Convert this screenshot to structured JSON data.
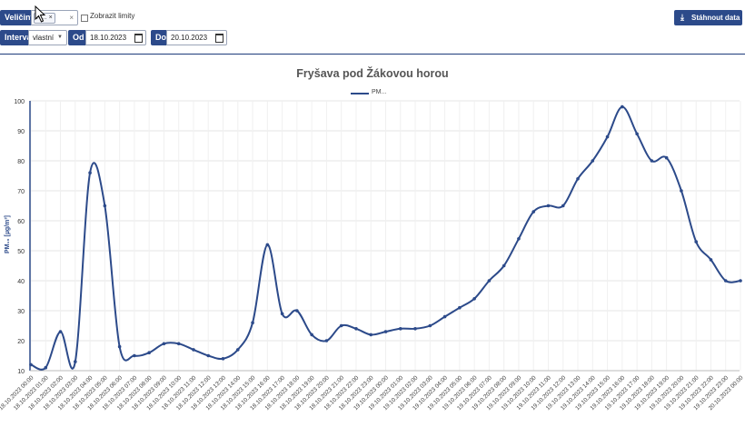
{
  "controls": {
    "quantities_label": "Veličiny",
    "quantity_chip": "P",
    "chip_remove": "×",
    "clear_all": "×",
    "show_limits_label": "Zobrazit limity",
    "interval_label": "Interval",
    "interval_value": "vlastní",
    "from_label": "Od",
    "from_value": "18.10.2023",
    "to_label": "Do",
    "to_value": "20.10.2023",
    "download_label": "Stáhnout data",
    "download_icon": "download-icon",
    "calendar_icon": "calendar-icon"
  },
  "chart_data": {
    "type": "line",
    "title": "Fryšava pod Žákovou horou",
    "ylabel": "PM₁₀ [µg/m³]",
    "legend": "PM...",
    "ylim": [
      10,
      100
    ],
    "yticks": [
      10,
      20,
      30,
      40,
      50,
      60,
      70,
      80,
      90,
      100
    ],
    "grid": true,
    "line_color": "#2c4a8a",
    "x": [
      "18.10.2023 01:00",
      "18.10.2023 02:00",
      "18.10.2023 03:00",
      "18.10.2023 04:00",
      "18.10.2023 05:00",
      "18.10.2023 06:00",
      "18.10.2023 07:00",
      "18.10.2023 08:00",
      "18.10.2023 09:00",
      "18.10.2023 10:00",
      "18.10.2023 11:00",
      "18.10.2023 12:00",
      "18.10.2023 13:00",
      "18.10.2023 14:00",
      "18.10.2023 15:00",
      "18.10.2023 16:00",
      "18.10.2023 17:00",
      "18.10.2023 18:00",
      "18.10.2023 19:00",
      "18.10.2023 20:00",
      "18.10.2023 21:00",
      "18.10.2023 22:00",
      "18.10.2023 23:00",
      "19.10.2023 00:00",
      "19.10.2023 01:00",
      "19.10.2023 02:00",
      "19.10.2023 03:00",
      "19.10.2023 04:00",
      "19.10.2023 05:00",
      "19.10.2023 06:00",
      "19.10.2023 07:00",
      "19.10.2023 08:00",
      "19.10.2023 09:00",
      "19.10.2023 10:00",
      "19.10.2023 11:00",
      "19.10.2023 12:00",
      "19.10.2023 13:00",
      "19.10.2023 14:00",
      "19.10.2023 15:00",
      "19.10.2023 16:00",
      "19.10.2023 17:00",
      "19.10.2023 18:00",
      "19.10.2023 19:00",
      "19.10.2023 20:00",
      "19.10.2023 21:00",
      "19.10.2023 22:00",
      "19.10.2023 23:00",
      "20.10.2023 00:00"
    ],
    "x_start_label": "18.10.2023 00:00",
    "y_start": 12,
    "values": [
      11,
      23,
      13,
      76,
      65,
      18,
      15,
      16,
      19,
      19,
      17,
      15,
      14,
      17,
      26,
      52,
      29,
      30,
      22,
      20,
      25,
      24,
      22,
      23,
      24,
      24,
      25,
      28,
      31,
      34,
      40,
      45,
      54,
      63,
      65,
      65,
      74,
      80,
      88,
      98,
      89,
      80,
      81,
      70,
      53,
      47,
      40,
      40
    ]
  }
}
